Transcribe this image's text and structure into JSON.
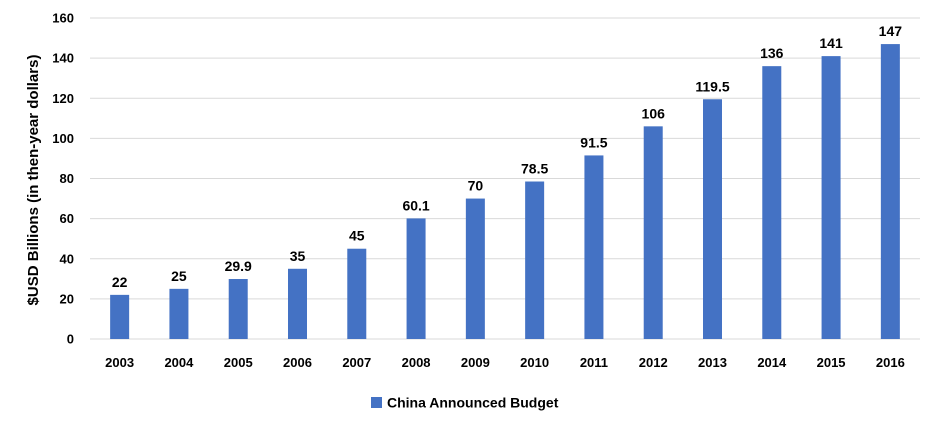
{
  "chart_data": {
    "type": "bar",
    "categories": [
      "2003",
      "2004",
      "2005",
      "2006",
      "2007",
      "2008",
      "2009",
      "2010",
      "2011",
      "2012",
      "2013",
      "2014",
      "2015",
      "2016"
    ],
    "series": [
      {
        "name": "China Announced Budget",
        "values": [
          22,
          25,
          29.9,
          35,
          45,
          60.1,
          70,
          78.5,
          91.5,
          106,
          119.5,
          136,
          141,
          147
        ],
        "color": "#4472c4"
      }
    ],
    "data_labels": [
      "22",
      "25",
      "29.9",
      "35",
      "45",
      "60.1",
      "70",
      "78.5",
      "91.5",
      "106",
      "119.5",
      "136",
      "141",
      "147"
    ],
    "title": "",
    "xlabel": "",
    "ylabel": "$USD Billions (in then-year dollars)",
    "ylim": [
      0,
      160
    ],
    "yticks": [
      "0",
      "20",
      "40",
      "60",
      "80",
      "100",
      "120",
      "140",
      "160"
    ],
    "grid": true,
    "legend_position": "bottom"
  }
}
